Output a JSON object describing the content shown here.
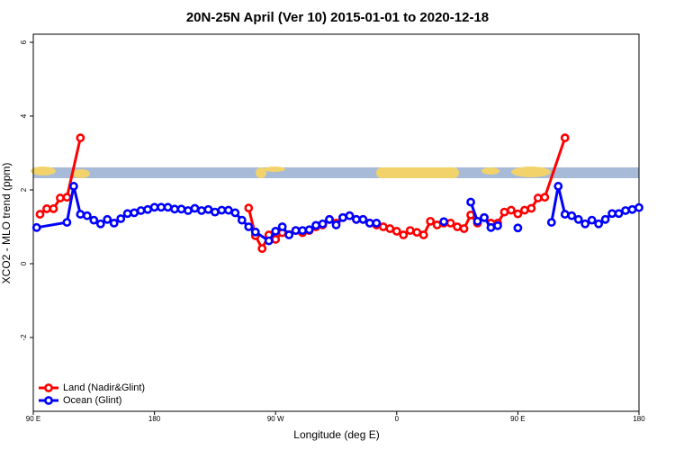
{
  "chart_data": {
    "type": "line",
    "title": "20N-25N April (Ver 10)   2015-01-01 to 2020-12-18",
    "x_label": "Longitude (deg E)",
    "y_label": "XCO2 - MLO trend (ppm)",
    "xlim": [
      90,
      540
    ],
    "xticks": [
      {
        "value": 90,
        "label": "90 E"
      },
      {
        "value": 180,
        "label": "180"
      },
      {
        "value": 270,
        "label": "90 W"
      },
      {
        "value": 360,
        "label": "0"
      },
      {
        "value": 450,
        "label": "90 E"
      },
      {
        "value": 540,
        "label": "180"
      }
    ],
    "ylim": [
      -4.0,
      6.22
    ],
    "yticks": [
      -2,
      0,
      2,
      4,
      6
    ],
    "legend": "bottom-left",
    "series": [
      {
        "name": "Land (Nadir&Glint)",
        "color": "#ff0000",
        "x": [
          95,
          100,
          105,
          110,
          115,
          125,
          null,
          250,
          255,
          260,
          265,
          270,
          275,
          280,
          285,
          290,
          295,
          300,
          305,
          310,
          315,
          320,
          325,
          330,
          335,
          340,
          345,
          350,
          355,
          360,
          365,
          370,
          375,
          380,
          385,
          390,
          395,
          400,
          405,
          410,
          415,
          420,
          425,
          430,
          435,
          440,
          445,
          450,
          455,
          460,
          465,
          470,
          485
        ],
        "values": [
          1.34,
          1.49,
          1.49,
          1.78,
          1.8,
          3.41,
          null,
          1.51,
          0.76,
          0.41,
          0.78,
          0.66,
          0.84,
          0.79,
          0.9,
          0.84,
          0.9,
          1.0,
          1.05,
          1.2,
          1.1,
          1.25,
          1.3,
          1.2,
          1.2,
          1.1,
          1.05,
          1.0,
          0.95,
          0.88,
          0.78,
          0.9,
          0.85,
          0.78,
          1.15,
          1.05,
          1.1,
          1.1,
          1.0,
          0.95,
          1.32,
          1.1,
          1.25,
          1.1,
          1.1,
          1.4,
          1.45,
          1.35,
          1.45,
          1.5,
          1.78,
          1.8,
          3.41
        ]
      },
      {
        "name": "Ocean (Glint)",
        "color": "#0000ff",
        "x": [
          92.5,
          115,
          120,
          125,
          130,
          135,
          140,
          145,
          150,
          155,
          160,
          165,
          170,
          175,
          180,
          185,
          190,
          195,
          200,
          205,
          210,
          215,
          220,
          225,
          230,
          235,
          240,
          245,
          250,
          255,
          265,
          270,
          275,
          280,
          285,
          290,
          295,
          300,
          305,
          310,
          315,
          320,
          325,
          330,
          335,
          340,
          345,
          null,
          395,
          null,
          415,
          420,
          425,
          430,
          435,
          null,
          450,
          null,
          475,
          480,
          485,
          490,
          495,
          500,
          505,
          510,
          515,
          520,
          525,
          530,
          535,
          540
        ],
        "values": [
          0.98,
          1.12,
          2.1,
          1.34,
          1.3,
          1.18,
          1.08,
          1.2,
          1.1,
          1.22,
          1.36,
          1.38,
          1.44,
          1.47,
          1.53,
          1.53,
          1.53,
          1.48,
          1.48,
          1.44,
          1.5,
          1.44,
          1.47,
          1.4,
          1.45,
          1.45,
          1.38,
          1.18,
          1.0,
          0.86,
          0.62,
          0.88,
          1.0,
          0.78,
          0.9,
          0.9,
          0.92,
          1.04,
          1.08,
          1.2,
          1.05,
          1.25,
          1.3,
          1.2,
          1.2,
          1.1,
          1.1,
          null,
          1.14,
          null,
          1.67,
          1.15,
          1.25,
          0.98,
          1.03,
          null,
          0.97,
          null,
          1.12,
          2.1,
          1.34,
          1.3,
          1.2,
          1.08,
          1.18,
          1.08,
          1.2,
          1.36,
          1.36,
          1.44,
          1.47,
          1.52
        ]
      }
    ]
  }
}
